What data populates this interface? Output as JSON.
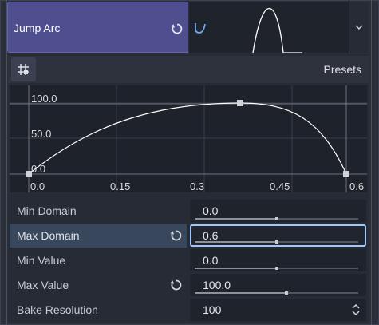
{
  "header": {
    "label": "Jump Arc"
  },
  "toolbar": {
    "presets_label": "Presets"
  },
  "graph": {
    "y_ticks": [
      "100.0",
      "50.0",
      "0.0"
    ],
    "x_ticks": [
      "0.0",
      "0.15",
      "0.3",
      "0.45",
      "0.6"
    ]
  },
  "properties": [
    {
      "label": "Min Domain",
      "value": "0.0",
      "slider_fraction": 0.5
    },
    {
      "label": "Max Domain",
      "value": "0.6",
      "slider_fraction": 0.5
    },
    {
      "label": "Min Value",
      "value": "0.0",
      "slider_fraction": 0.5
    },
    {
      "label": "Max Value",
      "value": "100.0",
      "slider_fraction": 0.56
    },
    {
      "label": "Bake Resolution",
      "value": "100"
    }
  ],
  "colors": {
    "header_bg": "#4f4e8f",
    "accent": "#9fc8ff",
    "curve": "#ffffff"
  },
  "icons": {
    "revert": "revert-icon",
    "grid": "grid-snap-icon",
    "dropdown": "chevron-down-icon",
    "spin": "spinner-arrows-icon",
    "curve_resource": "curve-resource-icon"
  }
}
